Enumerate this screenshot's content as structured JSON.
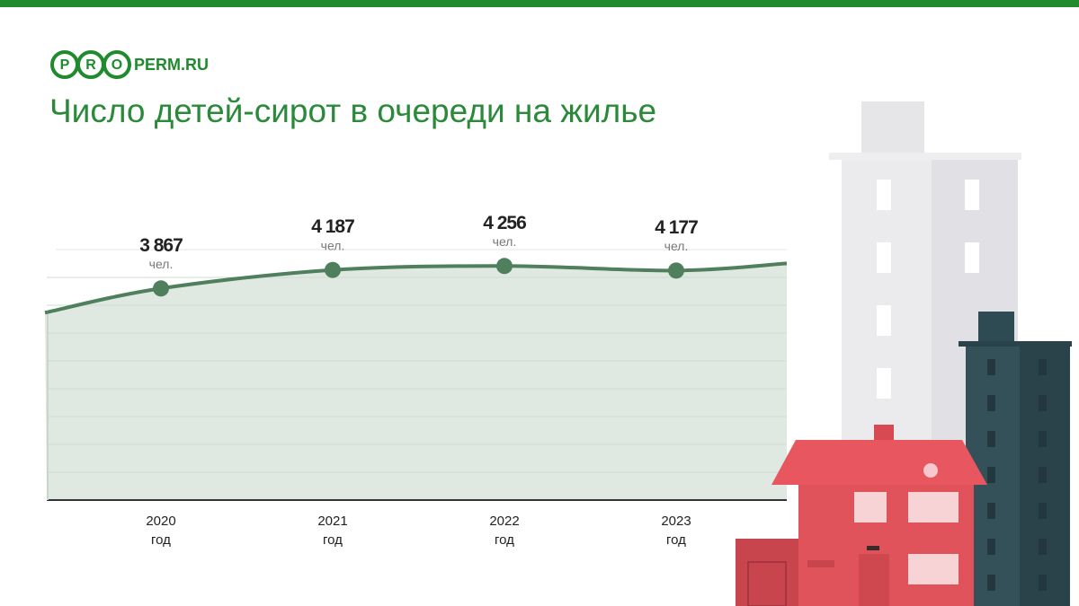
{
  "logo": {
    "letters": [
      "P",
      "R",
      "O"
    ],
    "text": "PERM.RU"
  },
  "chart_data": {
    "type": "line",
    "title": "Число детей-сирот в очереди на жилье",
    "categories": [
      "2020",
      "2021",
      "2022",
      "2023"
    ],
    "category_suffix": "год",
    "values": [
      3867,
      4187,
      4256,
      4177
    ],
    "value_labels": [
      "3 867",
      "4 187",
      "4 256",
      "4 177"
    ],
    "unit_label": "чел.",
    "color": "#4f7f5c",
    "ylim": [
      200,
      4540
    ]
  }
}
